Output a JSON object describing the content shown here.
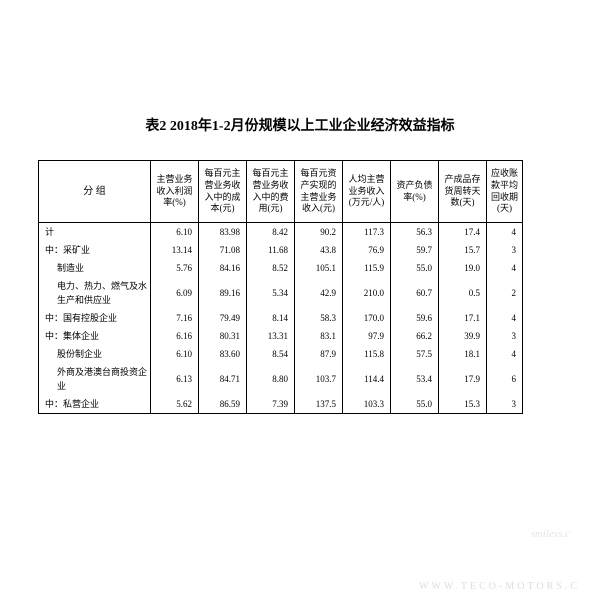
{
  "title": "表2 2018年1-2月份规模以上工业企业经济效益指标",
  "columns": [
    {
      "label": "分  组",
      "class": "group-col"
    },
    {
      "label": "主营业务收入利润率(%)",
      "class": "data-col"
    },
    {
      "label": "每百元主营业务收入中的成本(元)",
      "class": "data-col"
    },
    {
      "label": "每百元主营业务收入中的费用(元)",
      "class": "data-col"
    },
    {
      "label": "每百元资产实现的主营业务收入(元)",
      "class": "data-col"
    },
    {
      "label": "人均主营业务收入(万元/人)",
      "class": "data-col"
    },
    {
      "label": "资产负债率(%)",
      "class": "data-col"
    },
    {
      "label": "产成品存货周转天数(天)",
      "class": "data-col"
    },
    {
      "label": "应收账款平均回收期(天)",
      "class": "last-col"
    }
  ],
  "rows": [
    {
      "label": "计",
      "indent": 1,
      "values": [
        "6.10",
        "83.98",
        "8.42",
        "90.2",
        "117.3",
        "56.3",
        "17.4",
        "4"
      ]
    },
    {
      "label": "中：采矿业",
      "indent": 1,
      "values": [
        "13.14",
        "71.08",
        "11.68",
        "43.8",
        "76.9",
        "59.7",
        "15.7",
        "3"
      ]
    },
    {
      "label": "制造业",
      "indent": 2,
      "values": [
        "5.76",
        "84.16",
        "8.52",
        "105.1",
        "115.9",
        "55.0",
        "19.0",
        "4"
      ]
    },
    {
      "label": "电力、热力、燃气及水生产和供应业",
      "indent": 2,
      "values": [
        "6.09",
        "89.16",
        "5.34",
        "42.9",
        "210.0",
        "60.7",
        "0.5",
        "2"
      ]
    },
    {
      "label": "中：国有控股企业",
      "indent": 1,
      "values": [
        "7.16",
        "79.49",
        "8.14",
        "58.3",
        "170.0",
        "59.6",
        "17.1",
        "4"
      ]
    },
    {
      "label": "中：集体企业",
      "indent": 1,
      "values": [
        "6.16",
        "80.31",
        "13.31",
        "83.1",
        "97.9",
        "66.2",
        "39.9",
        "3"
      ]
    },
    {
      "label": "股份制企业",
      "indent": 2,
      "values": [
        "6.10",
        "83.60",
        "8.54",
        "87.9",
        "115.8",
        "57.5",
        "18.1",
        "4"
      ]
    },
    {
      "label": "外商及港澳台商投资企业",
      "indent": 2,
      "values": [
        "6.13",
        "84.71",
        "8.80",
        "103.7",
        "114.4",
        "53.4",
        "17.9",
        "6"
      ]
    },
    {
      "label": "中：私营企业",
      "indent": 1,
      "values": [
        "5.62",
        "86.59",
        "7.39",
        "137.5",
        "103.3",
        "55.0",
        "15.3",
        "3"
      ]
    }
  ],
  "watermark": "smiless.c",
  "footer": "WWW.TECO-MOTORS.C"
}
